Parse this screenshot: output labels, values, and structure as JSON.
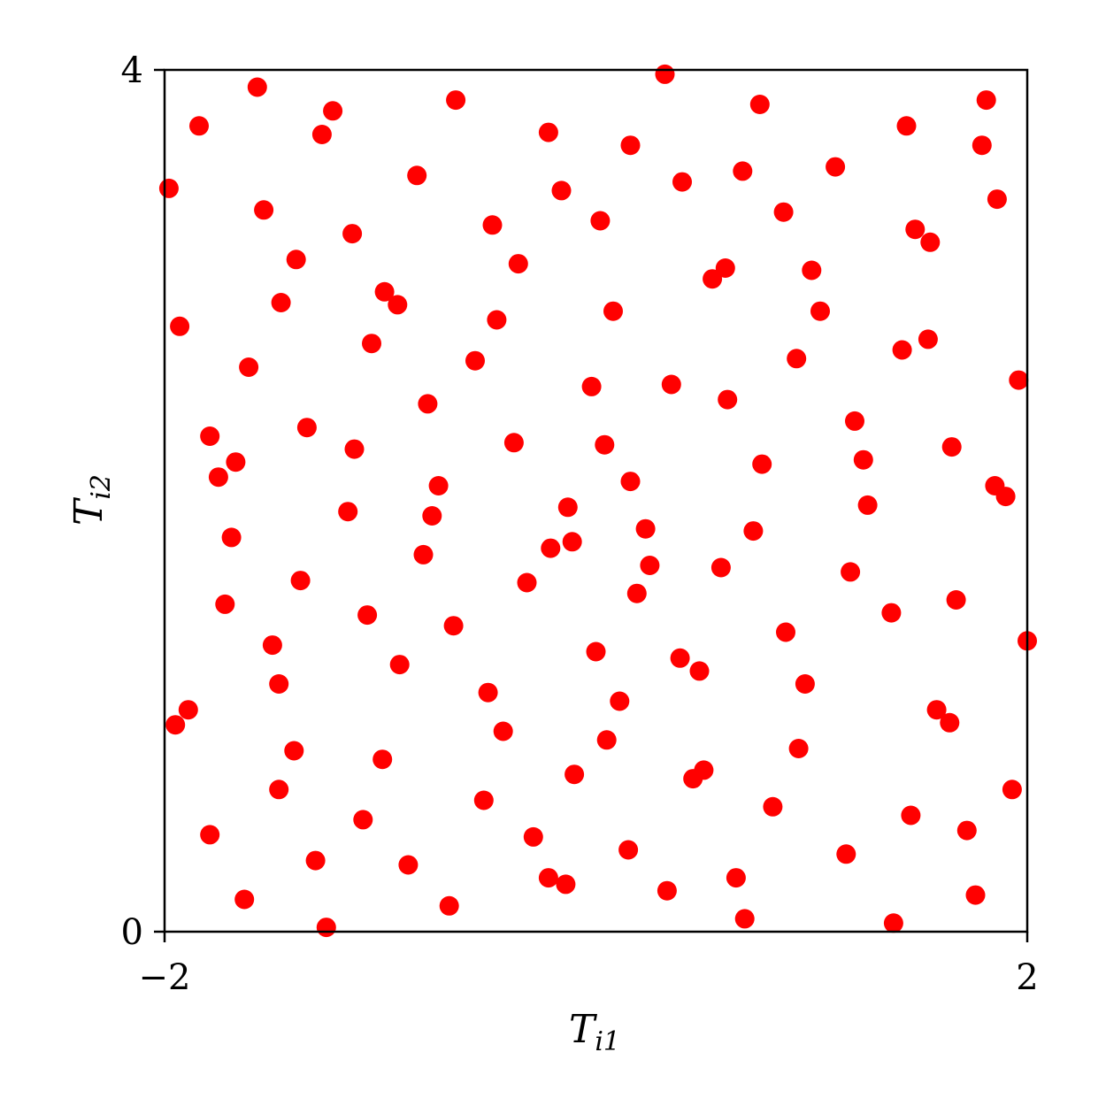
{
  "chart_data": {
    "type": "scatter",
    "title": "",
    "xlabel": {
      "main": "T",
      "sub": "i1"
    },
    "ylabel": {
      "main": "T",
      "sub": "i2"
    },
    "xlim": [
      -2,
      2
    ],
    "ylim": [
      0,
      4
    ],
    "xticks": [
      -2,
      2
    ],
    "yticks": [
      0,
      4
    ],
    "xtick_labels": [
      "−2",
      "2"
    ],
    "ytick_labels": [
      "0",
      "4"
    ],
    "grid": false,
    "marker_color": "#ff0000",
    "points": [
      [
        -1.98,
        3.45
      ],
      [
        -1.93,
        2.81
      ],
      [
        -1.95,
        0.96
      ],
      [
        -1.89,
        1.03
      ],
      [
        -1.84,
        3.74
      ],
      [
        -1.79,
        0.45
      ],
      [
        -1.79,
        2.3
      ],
      [
        -1.75,
        2.11
      ],
      [
        -1.72,
        1.52
      ],
      [
        -1.69,
        1.83
      ],
      [
        -1.67,
        2.18
      ],
      [
        -1.63,
        0.15
      ],
      [
        -1.61,
        2.62
      ],
      [
        -1.57,
        3.92
      ],
      [
        -1.54,
        3.35
      ],
      [
        -1.5,
        1.33
      ],
      [
        -1.47,
        0.66
      ],
      [
        -1.47,
        1.15
      ],
      [
        -1.46,
        2.92
      ],
      [
        -1.4,
        0.84
      ],
      [
        -1.39,
        3.12
      ],
      [
        -1.37,
        1.63
      ],
      [
        -1.34,
        2.34
      ],
      [
        -1.3,
        0.33
      ],
      [
        -1.27,
        3.7
      ],
      [
        -1.25,
        0.02
      ],
      [
        -1.22,
        3.81
      ],
      [
        -1.15,
        1.95
      ],
      [
        -1.13,
        3.24
      ],
      [
        -1.12,
        2.24
      ],
      [
        -1.08,
        0.52
      ],
      [
        -1.06,
        1.47
      ],
      [
        -1.04,
        2.73
      ],
      [
        -0.99,
        0.8
      ],
      [
        -0.98,
        2.97
      ],
      [
        -0.92,
        2.91
      ],
      [
        -0.91,
        1.24
      ],
      [
        -0.87,
        0.31
      ],
      [
        -0.83,
        3.51
      ],
      [
        -0.8,
        1.75
      ],
      [
        -0.78,
        2.45
      ],
      [
        -0.76,
        1.93
      ],
      [
        -0.73,
        2.07
      ],
      [
        -0.68,
        0.12
      ],
      [
        -0.65,
        3.86
      ],
      [
        -0.66,
        1.42
      ],
      [
        -0.56,
        2.65
      ],
      [
        -0.52,
        0.61
      ],
      [
        -0.48,
        3.28
      ],
      [
        -0.46,
        2.84
      ],
      [
        -0.5,
        1.11
      ],
      [
        -0.43,
        0.93
      ],
      [
        -0.36,
        3.1
      ],
      [
        -0.38,
        2.27
      ],
      [
        -0.32,
        1.62
      ],
      [
        -0.29,
        0.44
      ],
      [
        -0.22,
        0.25
      ],
      [
        -0.22,
        3.71
      ],
      [
        -0.21,
        1.78
      ],
      [
        -0.13,
        1.97
      ],
      [
        -0.16,
        3.44
      ],
      [
        -0.1,
        0.73
      ],
      [
        -0.14,
        0.22
      ],
      [
        -0.11,
        1.81
      ],
      [
        -0.02,
        2.53
      ],
      [
        0.02,
        3.3
      ],
      [
        0.04,
        2.26
      ],
      [
        0.0,
        1.3
      ],
      [
        0.08,
        2.88
      ],
      [
        0.05,
        0.89
      ],
      [
        0.16,
        3.65
      ],
      [
        0.11,
        1.07
      ],
      [
        0.15,
        0.38
      ],
      [
        0.16,
        2.09
      ],
      [
        0.19,
        1.57
      ],
      [
        0.23,
        1.87
      ],
      [
        0.25,
        1.7
      ],
      [
        0.32,
        3.98
      ],
      [
        0.33,
        0.19
      ],
      [
        0.35,
        2.54
      ],
      [
        0.39,
        1.27
      ],
      [
        0.4,
        3.48
      ],
      [
        0.45,
        0.71
      ],
      [
        0.48,
        1.21
      ],
      [
        0.5,
        0.75
      ],
      [
        0.54,
        3.03
      ],
      [
        0.6,
        3.08
      ],
      [
        0.58,
        1.69
      ],
      [
        0.65,
        0.25
      ],
      [
        0.61,
        2.47
      ],
      [
        0.68,
        3.53
      ],
      [
        0.69,
        0.06
      ],
      [
        0.73,
        1.86
      ],
      [
        0.76,
        3.84
      ],
      [
        0.77,
        2.17
      ],
      [
        0.82,
        0.58
      ],
      [
        0.87,
        3.34
      ],
      [
        0.88,
        1.39
      ],
      [
        0.93,
        2.66
      ],
      [
        0.94,
        0.85
      ],
      [
        0.97,
        1.15
      ],
      [
        1.0,
        3.07
      ],
      [
        1.04,
        2.88
      ],
      [
        1.11,
        3.55
      ],
      [
        1.16,
        0.36
      ],
      [
        1.18,
        1.67
      ],
      [
        1.2,
        2.37
      ],
      [
        1.24,
        2.19
      ],
      [
        1.26,
        1.98
      ],
      [
        1.37,
        1.48
      ],
      [
        1.38,
        0.04
      ],
      [
        1.42,
        2.7
      ],
      [
        1.44,
        3.74
      ],
      [
        1.46,
        0.54
      ],
      [
        1.48,
        3.26
      ],
      [
        1.54,
        2.75
      ],
      [
        1.58,
        1.03
      ],
      [
        1.64,
        0.97
      ],
      [
        1.55,
        3.2
      ],
      [
        1.65,
        2.25
      ],
      [
        1.67,
        1.54
      ],
      [
        1.72,
        0.47
      ],
      [
        1.76,
        0.17
      ],
      [
        1.79,
        3.65
      ],
      [
        1.81,
        3.86
      ],
      [
        1.85,
        2.07
      ],
      [
        1.9,
        2.02
      ],
      [
        1.86,
        3.4
      ],
      [
        1.93,
        0.66
      ],
      [
        1.96,
        2.56
      ],
      [
        2.0,
        1.35
      ]
    ]
  }
}
